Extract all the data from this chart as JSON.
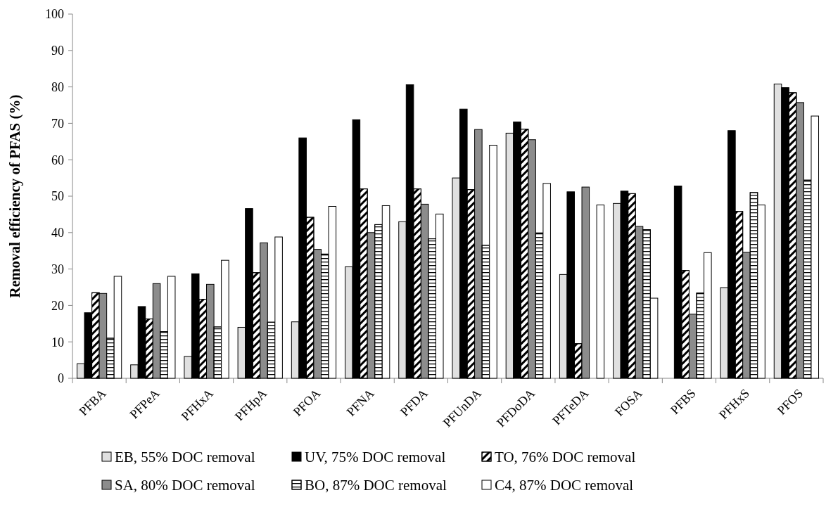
{
  "chart_data": {
    "type": "bar",
    "ylabel": "Removal efficiency of PFAS (%)",
    "categories": [
      "PFBA",
      "PFPeA",
      "PFHxA",
      "PFHpA",
      "PFOA",
      "PFNA",
      "PFDA",
      "PFUnDA",
      "PFDoDA",
      "PFTeDA",
      "FOSA",
      "PFBS",
      "PFHxS",
      "PFOS"
    ],
    "series": [
      {
        "name": "EB, 55% DOC removal",
        "color": "#e0e0e0",
        "values": [
          4,
          3.7,
          6,
          14,
          15.5,
          30.6,
          43,
          55,
          67.3,
          28.5,
          48,
          null,
          24.9,
          80.8
        ]
      },
      {
        "name": "UV, 75% DOC removal",
        "color": "#000000",
        "values": [
          18,
          19.7,
          28.7,
          46.6,
          66,
          71,
          80.6,
          73.9,
          70.4,
          51.2,
          51.4,
          52.8,
          68,
          79.8
        ]
      },
      {
        "name": "TO, 76% DOC removal",
        "color": "#ffffff",
        "values": [
          23.5,
          16.3,
          21.7,
          29,
          44.2,
          52,
          52,
          51.8,
          68.4,
          9.5,
          50.7,
          29.6,
          45.8,
          78.4
        ]
      },
      {
        "name": "SA, 80% DOC removal",
        "color": "#8c8c8c",
        "values": [
          23.3,
          26,
          25.8,
          37.2,
          35.4,
          40,
          47.8,
          68.3,
          65.5,
          52.5,
          41.7,
          17.6,
          34.6,
          75.7
        ]
      },
      {
        "name": "BO, 87% DOC removal",
        "color": "#ffffff",
        "values": [
          11,
          12.8,
          14.1,
          15.4,
          34.1,
          42.2,
          38.3,
          36.5,
          39.9,
          null,
          40.8,
          23.4,
          51,
          54.4
        ]
      },
      {
        "name": "C4, 87% DOC removal",
        "color": "#ffffff",
        "values": [
          28,
          28,
          32.4,
          38.8,
          47.2,
          47.4,
          45.1,
          64,
          53.5,
          47.6,
          22,
          34.5,
          47.6,
          72
        ]
      }
    ],
    "ylim": [
      0,
      100
    ],
    "yticks": [
      0,
      10,
      20,
      30,
      40,
      50,
      60,
      70,
      80,
      90,
      100
    ],
    "grid": false,
    "legend": "bottom"
  }
}
